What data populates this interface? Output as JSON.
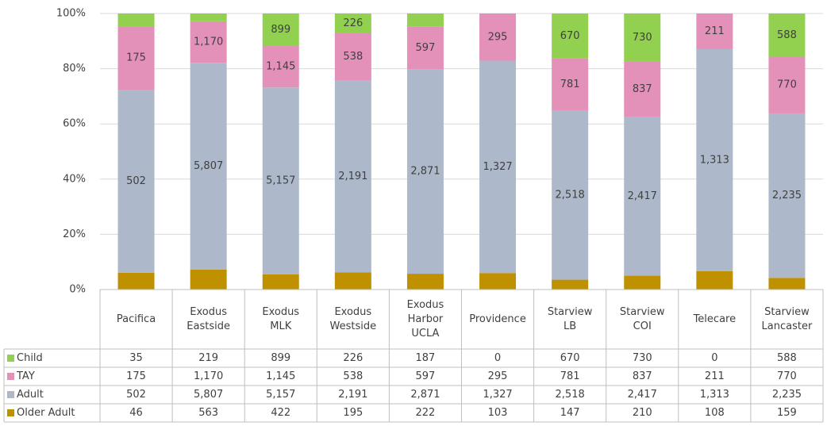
{
  "chart_data": {
    "type": "stacked_bar_100",
    "categories": [
      "Pacifica",
      "Exodus\nEastside",
      "Exodus\nMLK",
      "Exodus\nWestside",
      "Exodus\nHarbor\nUCLA",
      "Providence",
      "Starview\nLB",
      "Starview\nCOI",
      "Telecare",
      "Starview\nLancaster"
    ],
    "series": [
      {
        "name": "Child",
        "color": "#92d050",
        "data_labels": true,
        "values": [
          35,
          219,
          899,
          226,
          187,
          0,
          670,
          730,
          0,
          588
        ],
        "value_labels": [
          "35",
          "219",
          "899",
          "226",
          "187",
          "0",
          "670",
          "730",
          "0",
          "588"
        ]
      },
      {
        "name": "TAY",
        "color": "#e391b9",
        "data_labels": true,
        "values": [
          175,
          1170,
          1145,
          538,
          597,
          295,
          781,
          837,
          211,
          770
        ],
        "value_labels": [
          "175",
          "1,170",
          "1,145",
          "538",
          "597",
          "295",
          "781",
          "837",
          "211",
          "770"
        ]
      },
      {
        "name": "Adult",
        "color": "#adb9ca",
        "data_labels": true,
        "values": [
          502,
          5807,
          5157,
          2191,
          2871,
          1327,
          2518,
          2417,
          1313,
          2235
        ],
        "value_labels": [
          "502",
          "5,807",
          "5,157",
          "2,191",
          "2,871",
          "1,327",
          "2,518",
          "2,417",
          "1,313",
          "2,235"
        ]
      },
      {
        "name": "Older Adult",
        "color": "#bf9000",
        "data_labels": false,
        "values": [
          46,
          563,
          422,
          195,
          222,
          103,
          147,
          210,
          108,
          159
        ],
        "value_labels": [
          "46",
          "563",
          "422",
          "195",
          "222",
          "103",
          "147",
          "210",
          "108",
          "159"
        ]
      }
    ],
    "ylim": [
      0,
      100
    ],
    "yticks": [
      {
        "value": 0,
        "label": "0%"
      },
      {
        "value": 20,
        "label": "20%"
      },
      {
        "value": 40,
        "label": "40%"
      },
      {
        "value": 60,
        "label": "60%"
      },
      {
        "value": 80,
        "label": "80%"
      },
      {
        "value": 100,
        "label": "100%"
      }
    ],
    "grid": true
  }
}
